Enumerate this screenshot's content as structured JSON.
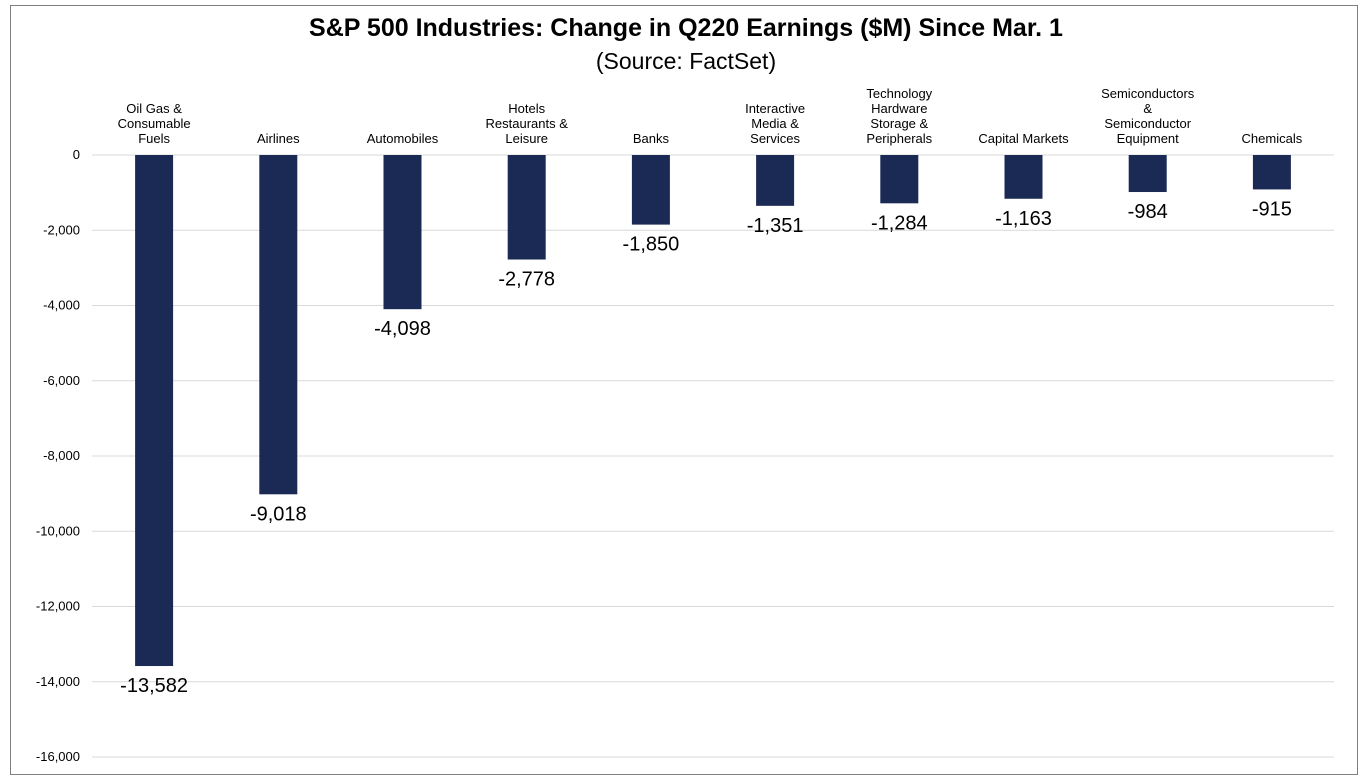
{
  "chart_data": {
    "type": "bar",
    "title": "S&P 500 Industries: Change in Q220 Earnings ($M) Since Mar. 1",
    "subtitle": "(Source: FactSet)",
    "categories": [
      [
        "Oil Gas &",
        "Consumable",
        "Fuels"
      ],
      [
        "Airlines"
      ],
      [
        "Automobiles"
      ],
      [
        "Hotels",
        "Restaurants &",
        "Leisure"
      ],
      [
        "Banks"
      ],
      [
        "Interactive",
        "Media &",
        "Services"
      ],
      [
        "Technology",
        "Hardware",
        "Storage &",
        "Peripherals"
      ],
      [
        "Capital Markets"
      ],
      [
        "Semiconductors",
        "&",
        "Semiconductor",
        "Equipment"
      ],
      [
        "Chemicals"
      ]
    ],
    "values": [
      -13582,
      -9018,
      -4098,
      -2778,
      -1850,
      -1351,
      -1284,
      -1163,
      -984,
      -915
    ],
    "data_labels": [
      "-13,582",
      "-9,018",
      "-4,098",
      "-2,778",
      "-1,850",
      "-1,351",
      "-1,284",
      "-1,163",
      "-984",
      "-915"
    ],
    "ylim": [
      -16000,
      0
    ],
    "yticks": [
      0,
      -2000,
      -4000,
      -6000,
      -8000,
      -10000,
      -12000,
      -14000,
      -16000
    ],
    "ytick_labels": [
      "0",
      "-2,000",
      "-4,000",
      "-6,000",
      "-8,000",
      "-10,000",
      "-12,000",
      "-14,000",
      "-16,000"
    ],
    "grid": true,
    "xlabel": "",
    "ylabel": "",
    "colors": {
      "bar": "#1b2a55",
      "grid": "#d9d9d9"
    }
  }
}
